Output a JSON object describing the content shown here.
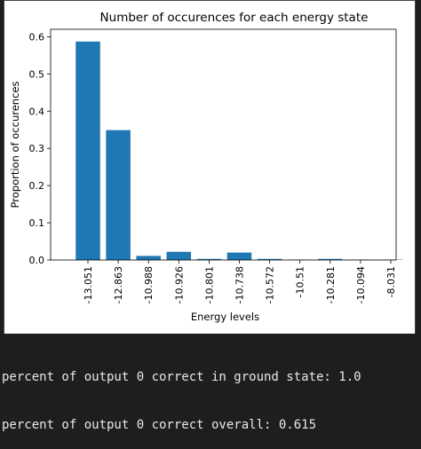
{
  "chart_data": {
    "type": "bar",
    "title": "Number of occurences for each energy state",
    "xlabel": "Energy levels",
    "ylabel": "Proportion of occurences",
    "categories": [
      "-13.051",
      "-12.863",
      "-10.988",
      "-10.926",
      "-10.801",
      "-10.738",
      "-10.572",
      "-10.51",
      "-10.281",
      "-10.094",
      "-8.031"
    ],
    "values": [
      0.587,
      0.349,
      0.011,
      0.022,
      0.003,
      0.02,
      0.003,
      0.001,
      0.003,
      0.001,
      0.001
    ],
    "ylim": [
      0,
      0.62
    ],
    "yticks": [
      "0.0",
      "0.1",
      "0.2",
      "0.3",
      "0.4",
      "0.5",
      "0.6"
    ],
    "bar_color": "#1f77b4",
    "grid": false
  },
  "console": {
    "lines": [
      "percent of output 0 correct in ground state: 1.0",
      "percent of output 0 correct overall: 0.615"
    ]
  }
}
